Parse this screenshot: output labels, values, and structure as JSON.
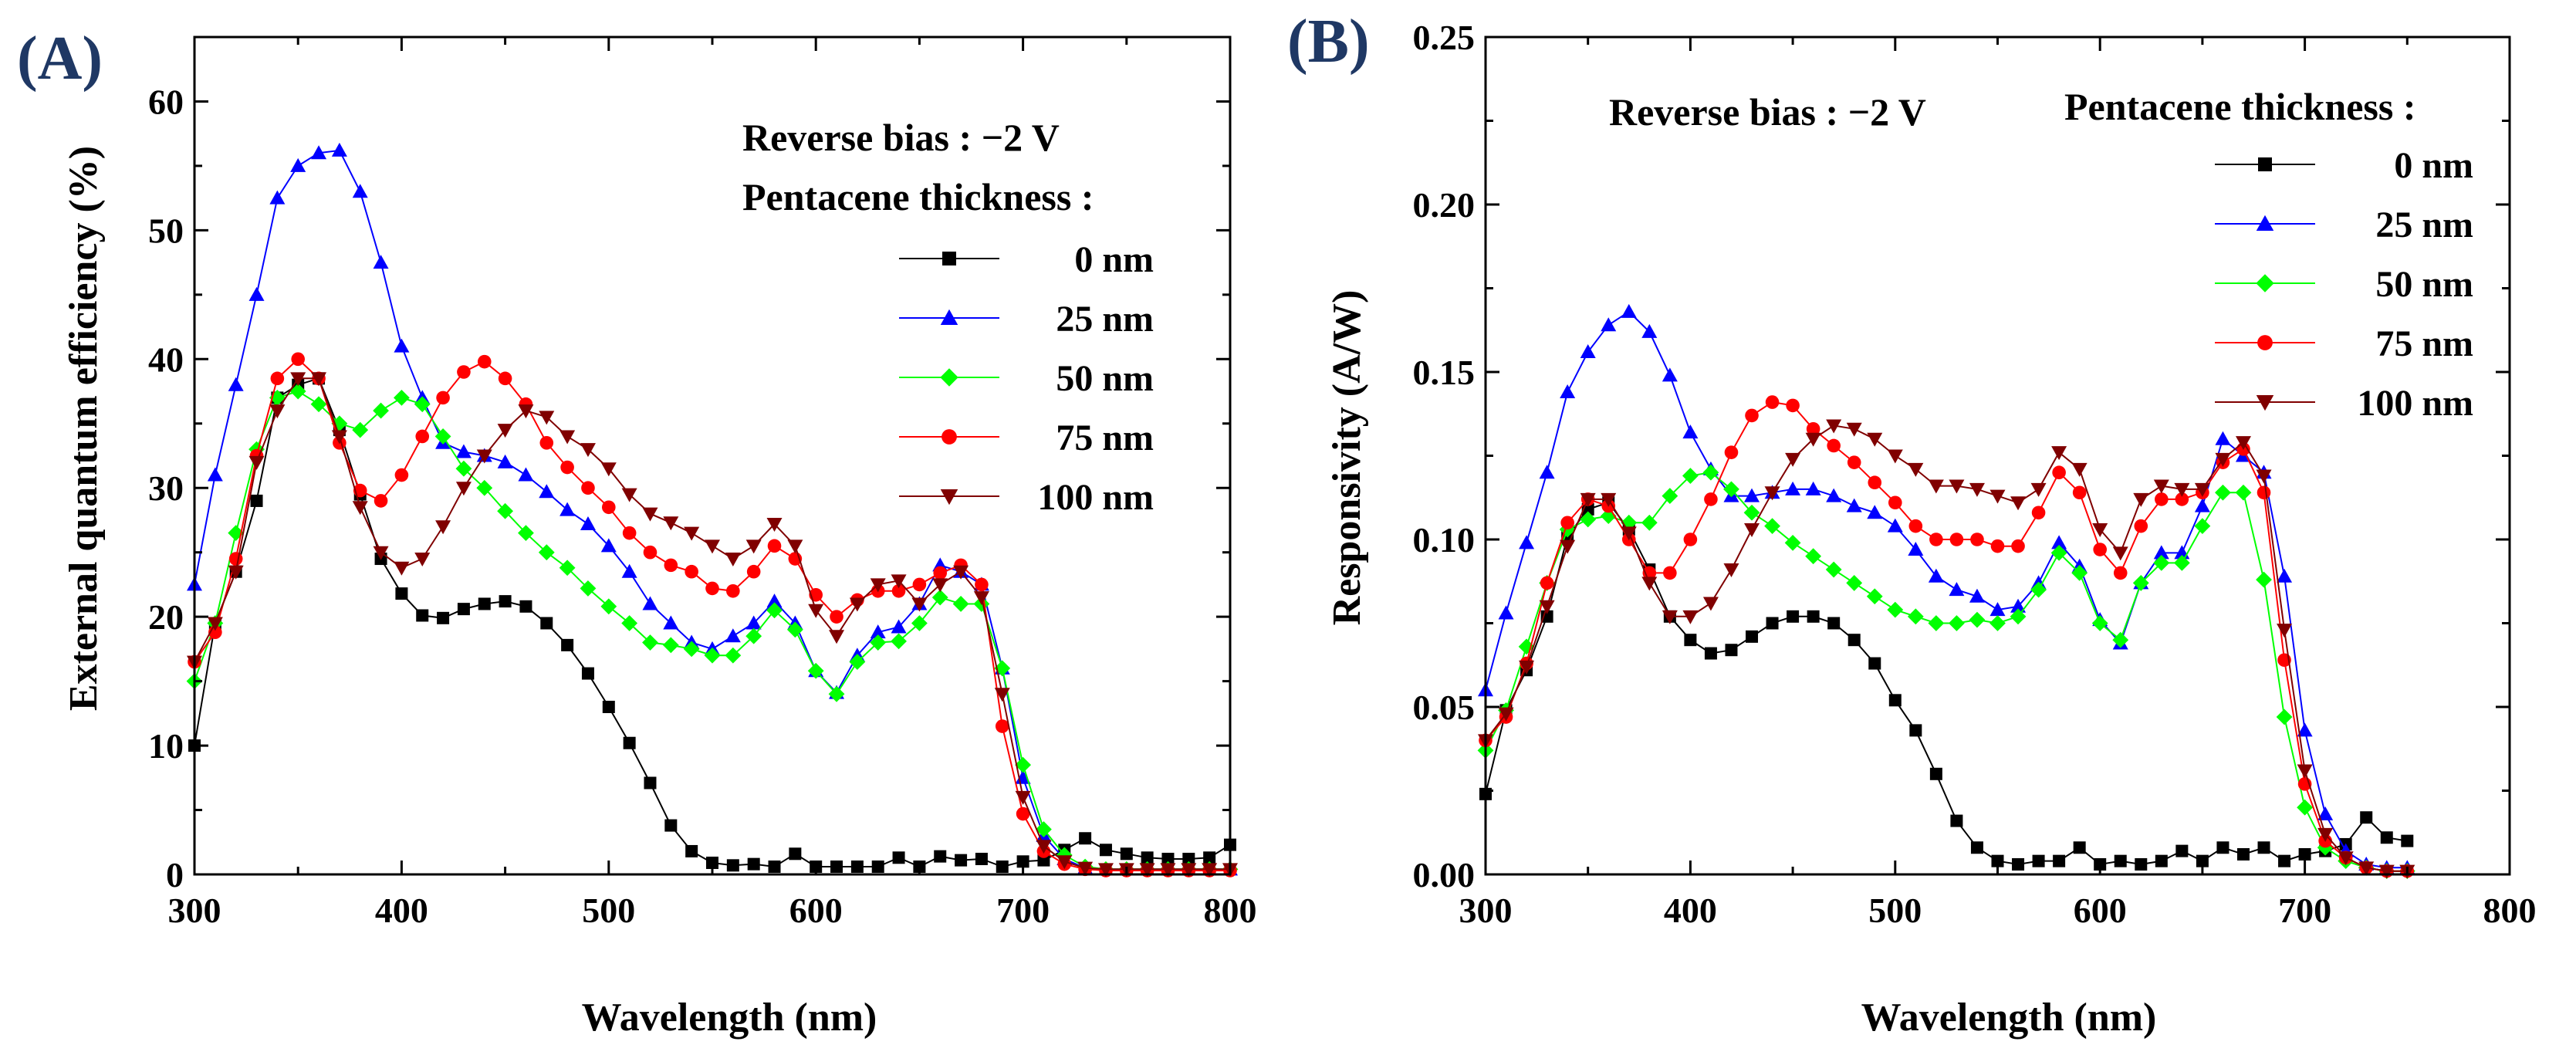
{
  "chart_data": [
    {
      "type": "line",
      "panel_label": "(A)",
      "title": "",
      "xlabel": "Wavelength (nm)",
      "ylabel": "External quantum efficiency (%)",
      "xlim": [
        300,
        800
      ],
      "ylim": [
        0,
        65
      ],
      "xticks": [
        "300",
        "400",
        "500",
        "600",
        "700",
        "800"
      ],
      "yticks": [
        "0",
        "10",
        "20",
        "30",
        "40",
        "50",
        "60"
      ],
      "annotations": [
        "Reverse bias : −2 V",
        "Pentacene thickness :"
      ],
      "legend_position": "top-right",
      "x": [
        300,
        310,
        320,
        330,
        340,
        350,
        360,
        370,
        380,
        390,
        400,
        410,
        420,
        430,
        440,
        450,
        460,
        470,
        480,
        490,
        500,
        510,
        520,
        530,
        540,
        550,
        560,
        570,
        580,
        590,
        600,
        610,
        620,
        630,
        640,
        650,
        660,
        670,
        680,
        690,
        700,
        710,
        720,
        730,
        740,
        750,
        760,
        770,
        780,
        790,
        800
      ],
      "series": [
        {
          "name": "0 nm",
          "color": "#000000",
          "marker": "square",
          "values": [
            10,
            19.5,
            23.5,
            29,
            37,
            38,
            38.5,
            34.5,
            29.5,
            24.5,
            21.8,
            20.1,
            19.9,
            20.6,
            21,
            21.2,
            20.8,
            19.5,
            17.8,
            15.6,
            13,
            10.2,
            7.1,
            3.8,
            1.8,
            0.9,
            0.7,
            0.8,
            0.6,
            1.6,
            0.6,
            0.6,
            0.6,
            0.6,
            1.3,
            0.6,
            1.4,
            1.1,
            1.2,
            0.6,
            1,
            1.1,
            1.9,
            2.8,
            1.9,
            1.6,
            1.3,
            1.2,
            1.2,
            1.3,
            2.3
          ]
        },
        {
          "name": "25 nm",
          "color": "#0000ff",
          "marker": "triangle-up",
          "values": [
            22.5,
            31,
            38,
            45,
            52.5,
            55,
            56,
            56.2,
            53,
            47.5,
            41,
            37,
            33.5,
            32.8,
            32.5,
            32,
            31,
            29.7,
            28.3,
            27.2,
            25.5,
            23.5,
            21,
            19.5,
            18,
            17.5,
            18.5,
            19.5,
            21.2,
            19.5,
            15.8,
            14.1,
            17,
            18.8,
            19.2,
            21,
            24,
            23.5,
            22.5,
            16,
            7.5,
            3,
            1.2,
            0.5,
            0.4,
            0.4,
            0.4,
            0.4,
            0.4,
            0.4,
            0.4
          ]
        },
        {
          "name": "50 nm",
          "color": "#00ff00",
          "marker": "diamond",
          "values": [
            15,
            19.5,
            26.5,
            33,
            37,
            37.5,
            36.5,
            35,
            34.5,
            36,
            37,
            36.5,
            34,
            31.5,
            30,
            28.2,
            26.5,
            25,
            23.8,
            22.2,
            20.8,
            19.5,
            18,
            17.8,
            17.5,
            17,
            17,
            18.5,
            20.5,
            19,
            15.8,
            14,
            16.5,
            18,
            18.1,
            19.5,
            21.5,
            21,
            21,
            16,
            8.5,
            3.5,
            1.5,
            0.6,
            0.4,
            0.4,
            0.4,
            0.4,
            0.4,
            0.4,
            0.4
          ]
        },
        {
          "name": "75 nm",
          "color": "#ff0000",
          "marker": "circle",
          "values": [
            16.5,
            18.8,
            24.5,
            32.5,
            38.5,
            40,
            38.5,
            33.5,
            29.8,
            29,
            31,
            34,
            37,
            39,
            39.8,
            38.5,
            36.5,
            33.5,
            31.6,
            30,
            28.5,
            26.5,
            25,
            24,
            23.5,
            22.2,
            22,
            23.5,
            25.5,
            24.5,
            21.7,
            20,
            21.3,
            22,
            22,
            22.5,
            23.4,
            24,
            22.5,
            11.5,
            4.7,
            1.8,
            0.8,
            0.4,
            0.3,
            0.3,
            0.3,
            0.3,
            0.3,
            0.3,
            0.3
          ]
        },
        {
          "name": "100 nm",
          "color": "#800000",
          "marker": "triangle-down",
          "values": [
            16.5,
            19.5,
            23.5,
            32,
            36,
            38.5,
            38.5,
            34,
            28.5,
            25,
            23.8,
            24.5,
            27,
            30,
            32.5,
            34.5,
            36,
            35.5,
            34,
            33,
            31.5,
            29.5,
            28,
            27.3,
            26.5,
            25.5,
            24.5,
            25.5,
            27.2,
            25.5,
            20.5,
            18.5,
            21,
            22.5,
            22.8,
            21,
            22.5,
            23.5,
            21.5,
            14,
            6,
            2.2,
            1,
            0.5,
            0.4,
            0.4,
            0.4,
            0.4,
            0.4,
            0.4,
            0.4
          ]
        }
      ]
    },
    {
      "type": "line",
      "panel_label": "(B)",
      "title": "",
      "xlabel": "Wavelength (nm)",
      "ylabel": "Responsivity (A/W)",
      "xlim": [
        300,
        800
      ],
      "ylim": [
        0,
        0.25
      ],
      "xticks": [
        "300",
        "400",
        "500",
        "600",
        "700",
        "800"
      ],
      "yticks": [
        "0.00",
        "0.05",
        "0.10",
        "0.15",
        "0.20",
        "0.25"
      ],
      "annotations": [
        "Reverse bias : −2 V",
        "Pentacene thickness :"
      ],
      "legend_position": "top-right",
      "x": [
        300,
        310,
        320,
        330,
        340,
        350,
        360,
        370,
        380,
        390,
        400,
        410,
        420,
        430,
        440,
        450,
        460,
        470,
        480,
        490,
        500,
        510,
        520,
        530,
        540,
        550,
        560,
        570,
        580,
        590,
        600,
        610,
        620,
        630,
        640,
        650,
        660,
        670,
        680,
        690,
        700,
        710,
        720,
        730,
        740,
        750
      ],
      "series": [
        {
          "name": "0 nm",
          "color": "#000000",
          "marker": "square",
          "values": [
            0.024,
            0.049,
            0.061,
            0.077,
            0.101,
            0.109,
            0.111,
            0.103,
            0.091,
            0.077,
            0.07,
            0.066,
            0.067,
            0.071,
            0.075,
            0.077,
            0.077,
            0.075,
            0.07,
            0.063,
            0.052,
            0.043,
            0.03,
            0.016,
            0.008,
            0.004,
            0.003,
            0.004,
            0.004,
            0.008,
            0.003,
            0.004,
            0.003,
            0.004,
            0.007,
            0.004,
            0.008,
            0.006,
            0.008,
            0.004,
            0.006,
            0.007,
            0.009,
            0.017,
            0.011,
            0.01
          ]
        },
        {
          "name": "25 nm",
          "color": "#0000ff",
          "marker": "triangle-up",
          "values": [
            0.055,
            0.078,
            0.099,
            0.12,
            0.144,
            0.156,
            0.164,
            0.168,
            0.162,
            0.149,
            0.132,
            0.121,
            0.113,
            0.113,
            0.114,
            0.115,
            0.115,
            0.113,
            0.11,
            0.108,
            0.104,
            0.097,
            0.089,
            0.085,
            0.083,
            0.079,
            0.08,
            0.087,
            0.099,
            0.092,
            0.076,
            0.069,
            0.087,
            0.096,
            0.096,
            0.11,
            0.13,
            0.125,
            0.12,
            0.089,
            0.043,
            0.018,
            0.007,
            0.003,
            0.002,
            0.002
          ]
        },
        {
          "name": "50 nm",
          "color": "#00ff00",
          "marker": "diamond",
          "values": [
            0.037,
            0.049,
            0.068,
            0.087,
            0.103,
            0.106,
            0.107,
            0.105,
            0.105,
            0.113,
            0.119,
            0.12,
            0.115,
            0.108,
            0.104,
            0.099,
            0.095,
            0.091,
            0.087,
            0.083,
            0.079,
            0.077,
            0.075,
            0.075,
            0.076,
            0.075,
            0.077,
            0.085,
            0.096,
            0.09,
            0.075,
            0.07,
            0.087,
            0.093,
            0.093,
            0.104,
            0.114,
            0.114,
            0.088,
            0.047,
            0.02,
            0.008,
            0.004,
            0.002,
            0.001,
            0.001
          ]
        },
        {
          "name": "75 nm",
          "color": "#ff0000",
          "marker": "circle",
          "values": [
            0.04,
            0.047,
            0.063,
            0.087,
            0.105,
            0.112,
            0.11,
            0.1,
            0.09,
            0.09,
            0.1,
            0.112,
            0.126,
            0.137,
            0.141,
            0.14,
            0.133,
            0.128,
            0.123,
            0.117,
            0.111,
            0.104,
            0.1,
            0.1,
            0.1,
            0.098,
            0.098,
            0.108,
            0.12,
            0.114,
            0.097,
            0.09,
            0.104,
            0.112,
            0.112,
            0.114,
            0.123,
            0.127,
            0.114,
            0.064,
            0.027,
            0.01,
            0.005,
            0.002,
            0.001,
            0.001
          ]
        },
        {
          "name": "100 nm",
          "color": "#800000",
          "marker": "triangle-down",
          "values": [
            0.04,
            0.048,
            0.062,
            0.08,
            0.098,
            0.112,
            0.112,
            0.102,
            0.087,
            0.077,
            0.077,
            0.081,
            0.091,
            0.103,
            0.114,
            0.124,
            0.13,
            0.134,
            0.133,
            0.13,
            0.125,
            0.121,
            0.116,
            0.116,
            0.115,
            0.113,
            0.111,
            0.115,
            0.126,
            0.121,
            0.103,
            0.096,
            0.112,
            0.116,
            0.115,
            0.115,
            0.124,
            0.129,
            0.119,
            0.073,
            0.031,
            0.012,
            0.005,
            0.002,
            0.001,
            0.001
          ]
        }
      ]
    }
  ]
}
